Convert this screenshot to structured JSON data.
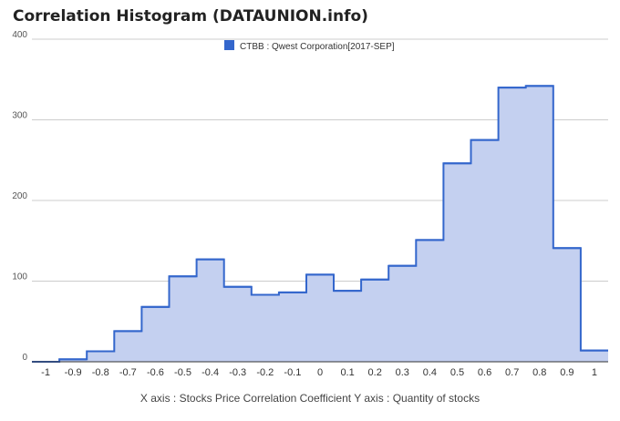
{
  "chart_data": {
    "type": "area",
    "title": "Correlation Histogram (DATAUNION.info)",
    "legend": "top-center",
    "series": [
      {
        "name": "CTBB : Qwest Corporation[2017-SEP]",
        "color": "#3366cc",
        "fill": "#c4d0f0",
        "bins": [
          {
            "x": -1.0,
            "y": 0
          },
          {
            "x": -0.9,
            "y": 3
          },
          {
            "x": -0.8,
            "y": 13
          },
          {
            "x": -0.7,
            "y": 38
          },
          {
            "x": -0.6,
            "y": 68
          },
          {
            "x": -0.5,
            "y": 106
          },
          {
            "x": -0.4,
            "y": 127
          },
          {
            "x": -0.3,
            "y": 93
          },
          {
            "x": -0.2,
            "y": 83
          },
          {
            "x": -0.1,
            "y": 86
          },
          {
            "x": 0.0,
            "y": 108
          },
          {
            "x": 0.1,
            "y": 88
          },
          {
            "x": 0.2,
            "y": 102
          },
          {
            "x": 0.3,
            "y": 119
          },
          {
            "x": 0.4,
            "y": 151
          },
          {
            "x": 0.5,
            "y": 246
          },
          {
            "x": 0.6,
            "y": 275
          },
          {
            "x": 0.7,
            "y": 340
          },
          {
            "x": 0.8,
            "y": 342
          },
          {
            "x": 0.9,
            "y": 141
          },
          {
            "x": 1.0,
            "y": 14
          }
        ]
      }
    ],
    "x_ticks": [
      "-1",
      "-0.9",
      "-0.8",
      "-0.7",
      "-0.6",
      "-0.5",
      "-0.4",
      "-0.3",
      "-0.2",
      "-0.1",
      "0",
      "0.1",
      "0.2",
      "0.3",
      "0.4",
      "0.5",
      "0.6",
      "0.7",
      "0.8",
      "0.9",
      "1"
    ],
    "y_ticks": [
      "0",
      "100",
      "200",
      "300",
      "400"
    ],
    "xlim": [
      -1.05,
      1.05
    ],
    "ylim": [
      0,
      400
    ],
    "grid": true,
    "axis_caption": "X axis : Stocks Price Correlation Coefficient  Y axis : Quantity of stocks"
  }
}
